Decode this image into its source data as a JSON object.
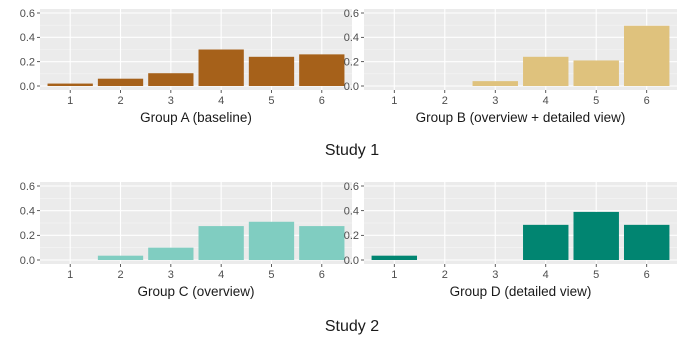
{
  "chart_data": [
    {
      "type": "bar",
      "xlabel": "Group A (baseline)",
      "categories": [
        "1",
        "2",
        "3",
        "4",
        "5",
        "6"
      ],
      "values": [
        0.02,
        0.06,
        0.105,
        0.3,
        0.24,
        0.26
      ],
      "ylim": [
        0,
        0.6
      ],
      "yticks": [
        "0.0",
        "0.2",
        "0.4",
        "0.6"
      ],
      "color": "#A6611A",
      "grid": true
    },
    {
      "type": "bar",
      "xlabel": "Group B (overview + detailed view)",
      "categories": [
        "1",
        "2",
        "3",
        "4",
        "5",
        "6"
      ],
      "values": [
        0,
        0,
        0.04,
        0.24,
        0.21,
        0.495
      ],
      "ylim": [
        0,
        0.6
      ],
      "yticks": [
        "0.0",
        "0.2",
        "0.4",
        "0.6"
      ],
      "color": "#DFC27D",
      "grid": true
    },
    {
      "type": "bar",
      "xlabel": "Group C (overview)",
      "categories": [
        "1",
        "2",
        "3",
        "4",
        "5",
        "6"
      ],
      "values": [
        0,
        0.035,
        0.1,
        0.275,
        0.31,
        0.275
      ],
      "ylim": [
        0,
        0.6
      ],
      "yticks": [
        "0.0",
        "0.2",
        "0.4",
        "0.6"
      ],
      "color": "#80CDC1",
      "grid": true
    },
    {
      "type": "bar",
      "xlabel": "Group D (detailed view)",
      "categories": [
        "1",
        "2",
        "3",
        "4",
        "5",
        "6"
      ],
      "values": [
        0.035,
        0,
        0,
        0.285,
        0.39,
        0.285
      ],
      "ylim": [
        0,
        0.6
      ],
      "yticks": [
        "0.0",
        "0.2",
        "0.4",
        "0.6"
      ],
      "color": "#018571",
      "grid": true
    }
  ],
  "studies": [
    "Study 1",
    "Study 2"
  ],
  "colors": {
    "panel_background": "#EBEBEB",
    "grid_major": "#FFFFFF",
    "grid_minor": "#F5F5F5"
  }
}
